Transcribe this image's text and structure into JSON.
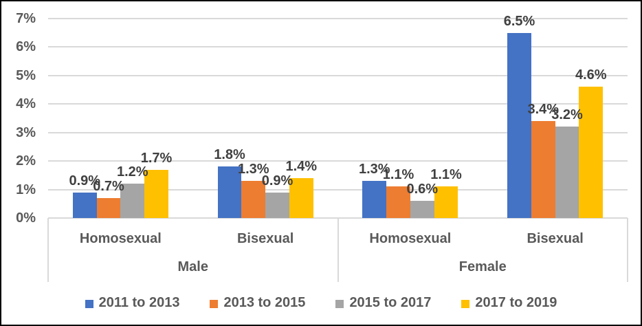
{
  "chart_data": {
    "type": "bar",
    "title": "",
    "xlabel": "",
    "ylabel": "",
    "ylim": [
      0,
      7
    ],
    "ytick_labels": [
      "0%",
      "1%",
      "2%",
      "3%",
      "4%",
      "5%",
      "6%",
      "7%"
    ],
    "grid": true,
    "legend_position": "bottom",
    "categories": [
      "Homosexual",
      "Bisexual",
      "Homosexual",
      "Bisexual"
    ],
    "group_labels": [
      "Male",
      "Female"
    ],
    "series": [
      {
        "name": "2011 to 2013",
        "color": "#4472C4",
        "values": [
          0.9,
          1.8,
          1.3,
          6.5
        ],
        "labels": [
          "0.9%",
          "1.8%",
          "1.3%",
          "6.5%"
        ]
      },
      {
        "name": "2013 to 2015",
        "color": "#ED7D31",
        "values": [
          0.7,
          1.3,
          1.1,
          3.4
        ],
        "labels": [
          "0.7%",
          "1.3%",
          "1.1%",
          "3.4%"
        ]
      },
      {
        "name": "2015 to 2017",
        "color": "#A5A5A5",
        "values": [
          1.2,
          0.9,
          0.6,
          3.2
        ],
        "labels": [
          "1.2%",
          "0.9%",
          "0.6%",
          "3.2%"
        ]
      },
      {
        "name": "2017 to 2019",
        "color": "#FFC000",
        "values": [
          1.7,
          1.4,
          1.1,
          4.6
        ],
        "labels": [
          "1.7%",
          "1.4%",
          "1.1%",
          "4.6%"
        ]
      }
    ]
  },
  "colors": {
    "gridline": "#D9D9D9",
    "axis_text": "#595959",
    "data_label_text": "#404040",
    "frame_border": "#000000",
    "background": "#FFFFFF"
  }
}
